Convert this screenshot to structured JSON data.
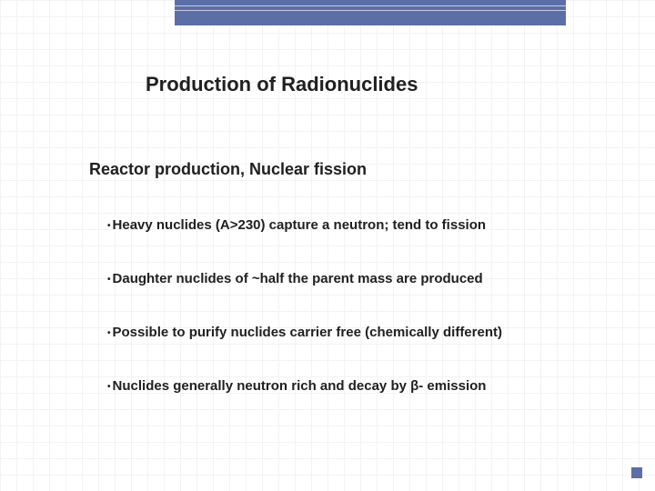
{
  "accent_color": "#5b6ea8",
  "grid_color": "#e8e8e8",
  "text_color": "#202020",
  "title": "Production of Radionuclides",
  "subtitle": "Reactor production, Nuclear fission",
  "bullets": [
    "Heavy nuclides (A>230) capture a neutron; tend to fission",
    "Daughter nuclides of ~half the parent mass are produced",
    "Possible to purify nuclides carrier free (chemically different)",
    "Nuclides generally neutron rich and decay by β- emission"
  ]
}
